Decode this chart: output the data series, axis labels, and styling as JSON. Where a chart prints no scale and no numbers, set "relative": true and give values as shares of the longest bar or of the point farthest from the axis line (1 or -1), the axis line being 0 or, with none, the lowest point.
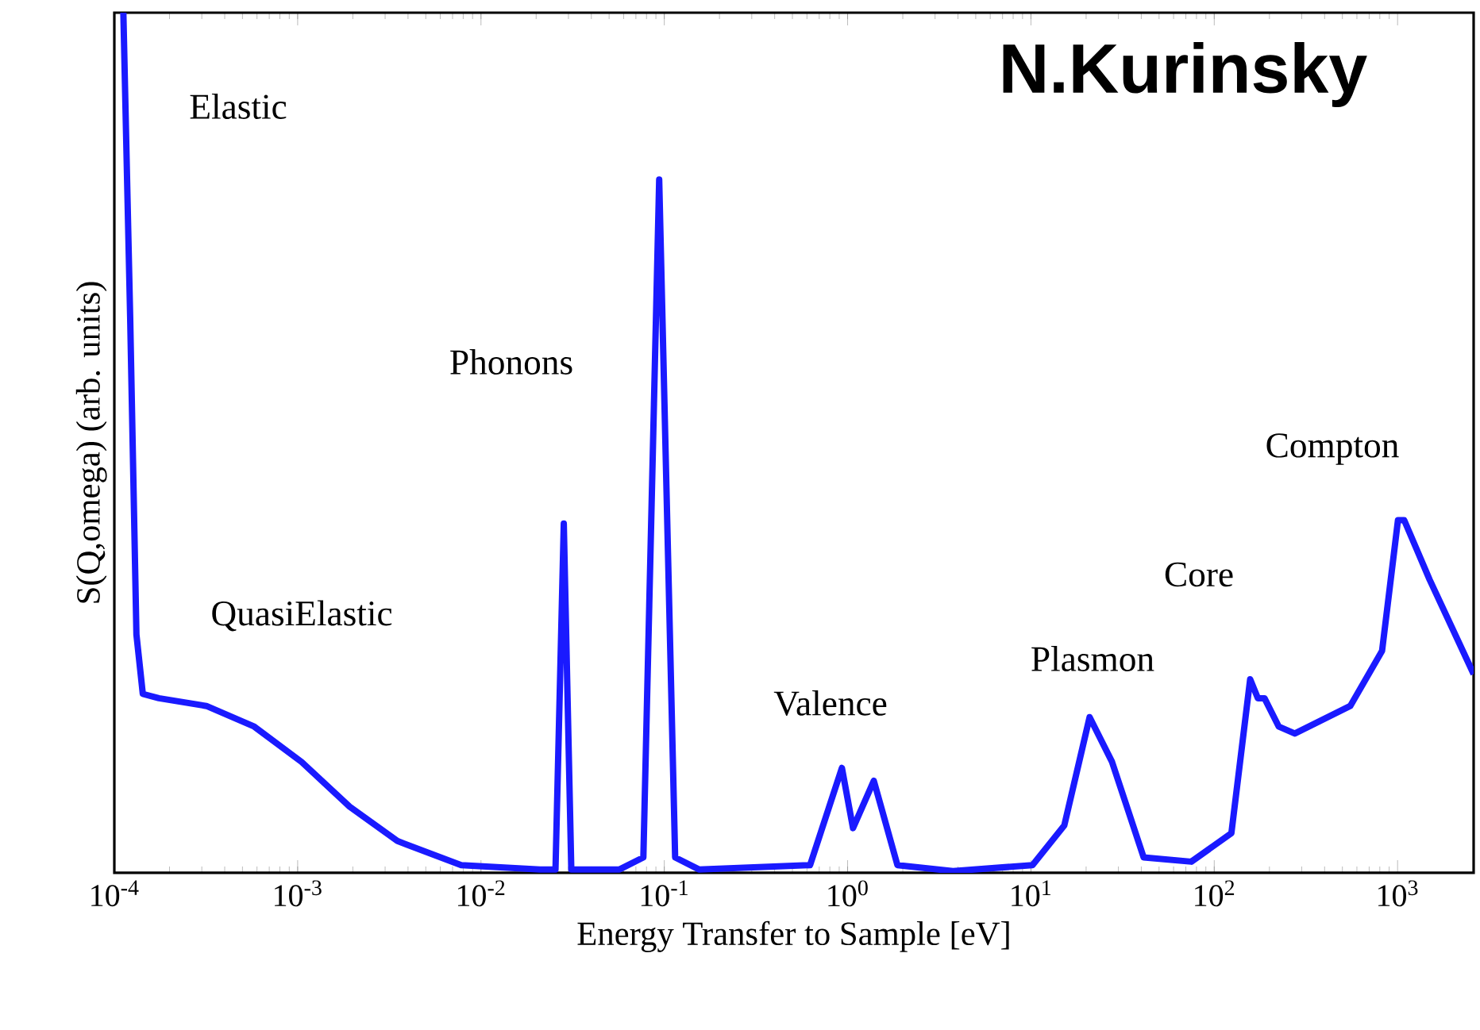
{
  "chart_data": {
    "type": "line",
    "relative": true,
    "log": "x",
    "xlabel": "Energy Transfer to Sample [eV]",
    "ylabel": "S(Q,omega)  (arb. units)",
    "xlim": [
      0.0001,
      2600
    ],
    "xticks": [
      {
        "value": 0.0001,
        "label": "10$^{-4}$"
      },
      {
        "value": 0.001,
        "label": "10$^{-3}$"
      },
      {
        "value": 0.01,
        "label": "10$^{-2}$"
      },
      {
        "value": 0.1,
        "label": "10$^{-1}$"
      },
      {
        "value": 1,
        "label": "10$^{0}$"
      },
      {
        "value": 10,
        "label": "10$^{1}$"
      },
      {
        "value": 100,
        "label": "10$^{2}$"
      },
      {
        "value": 1000,
        "label": "10$^{3}$"
      }
    ],
    "x": [
      0.000112,
      0.000122,
      0.000132,
      0.000143,
      0.000175,
      0.000318,
      0.00058,
      0.00105,
      0.00192,
      0.0035,
      0.0078,
      0.021,
      0.0255,
      0.0283,
      0.0311,
      0.057,
      0.0769,
      0.0938,
      0.1146,
      0.1545,
      0.624,
      0.931,
      1.07,
      1.39,
      1.87,
      3.76,
      10.2,
      15.2,
      20.9,
      27.7,
      41.2,
      75,
      124,
      157,
      173,
      188,
      225,
      275,
      552,
      823,
      1005,
      1087,
      1495,
      2600
    ],
    "series": [
      {
        "color": "#1a1aff",
        "values": [
          1.0,
          0.646,
          0.277,
          0.208,
          0.203,
          0.194,
          0.17,
          0.129,
          0.077,
          0.037,
          0.009,
          0.004,
          0.004,
          0.406,
          0.004,
          0.004,
          0.018,
          0.806,
          0.018,
          0.004,
          0.009,
          0.122,
          0.052,
          0.107,
          0.009,
          0.002,
          0.009,
          0.055,
          0.181,
          0.129,
          0.018,
          0.013,
          0.046,
          0.225,
          0.203,
          0.203,
          0.17,
          0.162,
          0.194,
          0.258,
          0.41,
          0.41,
          0.341,
          0.231
        ]
      }
    ],
    "annotations": [
      "Elastic",
      "QuasiElastic",
      "Phonons",
      "Valence",
      "Plasmon",
      "Core",
      "Compton",
      "N.Kurinsky"
    ]
  }
}
